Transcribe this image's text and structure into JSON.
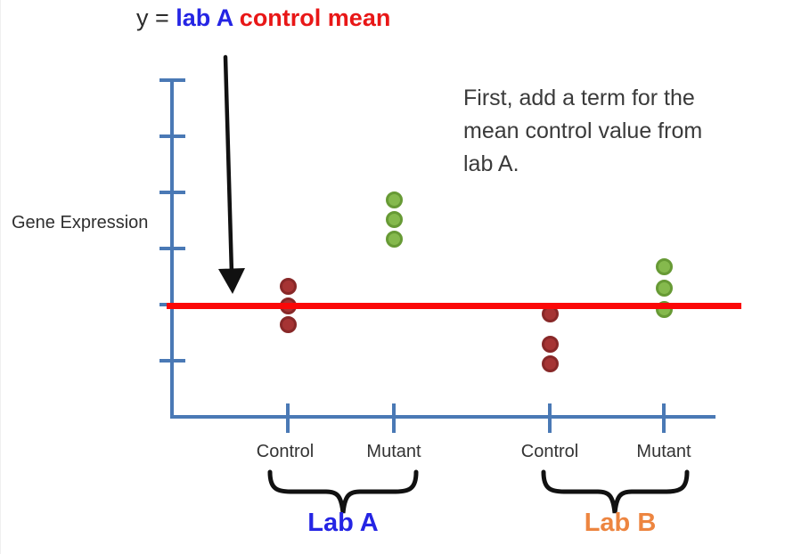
{
  "title": {
    "part_y": "y = ",
    "part_lab": "lab A ",
    "part_mean": "control mean",
    "y_color": "#2b2b2b",
    "lab_color": "#2525e4",
    "mean_color": "#e81717"
  },
  "annotation": {
    "lines": [
      "First, add a term for the",
      "mean control value from",
      "lab A."
    ]
  },
  "y_axis_label": "Gene Expression",
  "labs": [
    {
      "label": "Lab A",
      "color": "#2525e4"
    },
    {
      "label": "Lab B",
      "color": "#ed8540"
    }
  ],
  "chart_data": {
    "type": "scatter",
    "title": "y = lab A control mean",
    "ylabel": "Gene Expression",
    "xlabel": "",
    "x_tick_labels": [
      "Control",
      "Mutant",
      "Control",
      "Mutant"
    ],
    "x_groups": [
      {
        "label": "Lab A",
        "categories": [
          "Control",
          "Mutant"
        ]
      },
      {
        "label": "Lab B",
        "categories": [
          "Control",
          "Mutant"
        ]
      }
    ],
    "y_axis": {
      "numeric_labels": false,
      "units": "relative gene expression (unlabeled ticks, 1 unit = 1 tick)",
      "tick_values": [
        1,
        2,
        3,
        4,
        5,
        6
      ],
      "ylim": [
        0,
        6
      ]
    },
    "axis_color": "#4a79b5",
    "grid": false,
    "legend": false,
    "series": [
      {
        "name": "Lab A Control",
        "category_index": 0,
        "color": "#a63434",
        "border_color": "#882828",
        "values": [
          2.32,
          1.98,
          1.65
        ]
      },
      {
        "name": "Lab A Mutant",
        "category_index": 1,
        "color": "#85b94d",
        "border_color": "#679a35",
        "values": [
          3.87,
          3.52,
          3.16
        ]
      },
      {
        "name": "Lab B Control",
        "category_index": 2,
        "color": "#a63434",
        "border_color": "#882828",
        "values": [
          1.83,
          1.29,
          0.94
        ]
      },
      {
        "name": "Lab B Mutant",
        "category_index": 3,
        "color": "#85b94d",
        "border_color": "#679a35",
        "values": [
          2.68,
          2.3,
          1.92
        ]
      }
    ],
    "reference_line": {
      "label": "lab A control mean",
      "value": 1.98,
      "color": "#fb0808"
    },
    "annotations": [
      "y = lab A control mean",
      "First, add a term for the mean control value from lab A."
    ]
  }
}
